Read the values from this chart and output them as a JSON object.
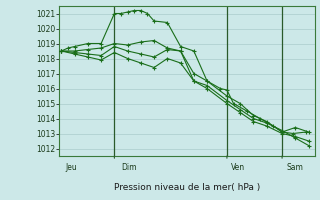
{
  "bg_color": "#cce8e8",
  "grid_color": "#aacccc",
  "line_color": "#1a6e1a",
  "xlabel_text": "Pression niveau de la mer( hPa )",
  "ylim": [
    1011.5,
    1021.5
  ],
  "yticks": [
    1012,
    1013,
    1014,
    1015,
    1016,
    1017,
    1018,
    1019,
    1020,
    1021
  ],
  "day_labels": [
    "Jeu",
    "Dim",
    "Ven",
    "Sam"
  ],
  "day_positions": [
    2,
    27,
    77,
    102
  ],
  "vline_positions": [
    24,
    75,
    100
  ],
  "xlim": [
    -1,
    115
  ],
  "series": [
    {
      "x": [
        0,
        3,
        6,
        12,
        18,
        24,
        27,
        30,
        33,
        36,
        39,
        42,
        48,
        54,
        60,
        66,
        72,
        75,
        78,
        84,
        90,
        96,
        100,
        105,
        111
      ],
      "y": [
        1018.5,
        1018.7,
        1018.8,
        1019.0,
        1019.0,
        1021.0,
        1021.0,
        1021.1,
        1021.2,
        1021.2,
        1021.0,
        1020.5,
        1020.4,
        1018.8,
        1018.5,
        1016.5,
        1016.0,
        1015.9,
        1015.0,
        1014.5,
        1014.0,
        1013.5,
        1013.1,
        1013.0,
        1013.1
      ],
      "marker": "+"
    },
    {
      "x": [
        0,
        6,
        12,
        18,
        24,
        30,
        36,
        42,
        48,
        54,
        60,
        66,
        75,
        81,
        87,
        93,
        100,
        106,
        112
      ],
      "y": [
        1018.5,
        1018.5,
        1018.6,
        1018.7,
        1019.0,
        1018.9,
        1019.1,
        1019.2,
        1018.7,
        1018.5,
        1016.5,
        1016.2,
        1015.2,
        1014.6,
        1014.0,
        1013.7,
        1013.2,
        1012.7,
        1012.2
      ],
      "marker": "+"
    },
    {
      "x": [
        0,
        6,
        12,
        18,
        24,
        30,
        36,
        42,
        48,
        54,
        60,
        66,
        75,
        81,
        87,
        93,
        100,
        106,
        112
      ],
      "y": [
        1018.5,
        1018.4,
        1018.3,
        1018.2,
        1018.8,
        1018.5,
        1018.3,
        1018.1,
        1018.6,
        1018.5,
        1017.0,
        1016.5,
        1015.5,
        1015.0,
        1014.2,
        1013.8,
        1013.1,
        1013.4,
        1013.1
      ],
      "marker": "+"
    },
    {
      "x": [
        0,
        6,
        12,
        18,
        24,
        30,
        36,
        42,
        48,
        54,
        60,
        66,
        75,
        81,
        87,
        93,
        100,
        106,
        112
      ],
      "y": [
        1018.5,
        1018.3,
        1018.1,
        1017.9,
        1018.4,
        1018.0,
        1017.7,
        1017.4,
        1018.0,
        1017.7,
        1016.5,
        1016.0,
        1015.0,
        1014.4,
        1013.8,
        1013.5,
        1013.0,
        1012.8,
        1012.5
      ],
      "marker": "+"
    }
  ]
}
